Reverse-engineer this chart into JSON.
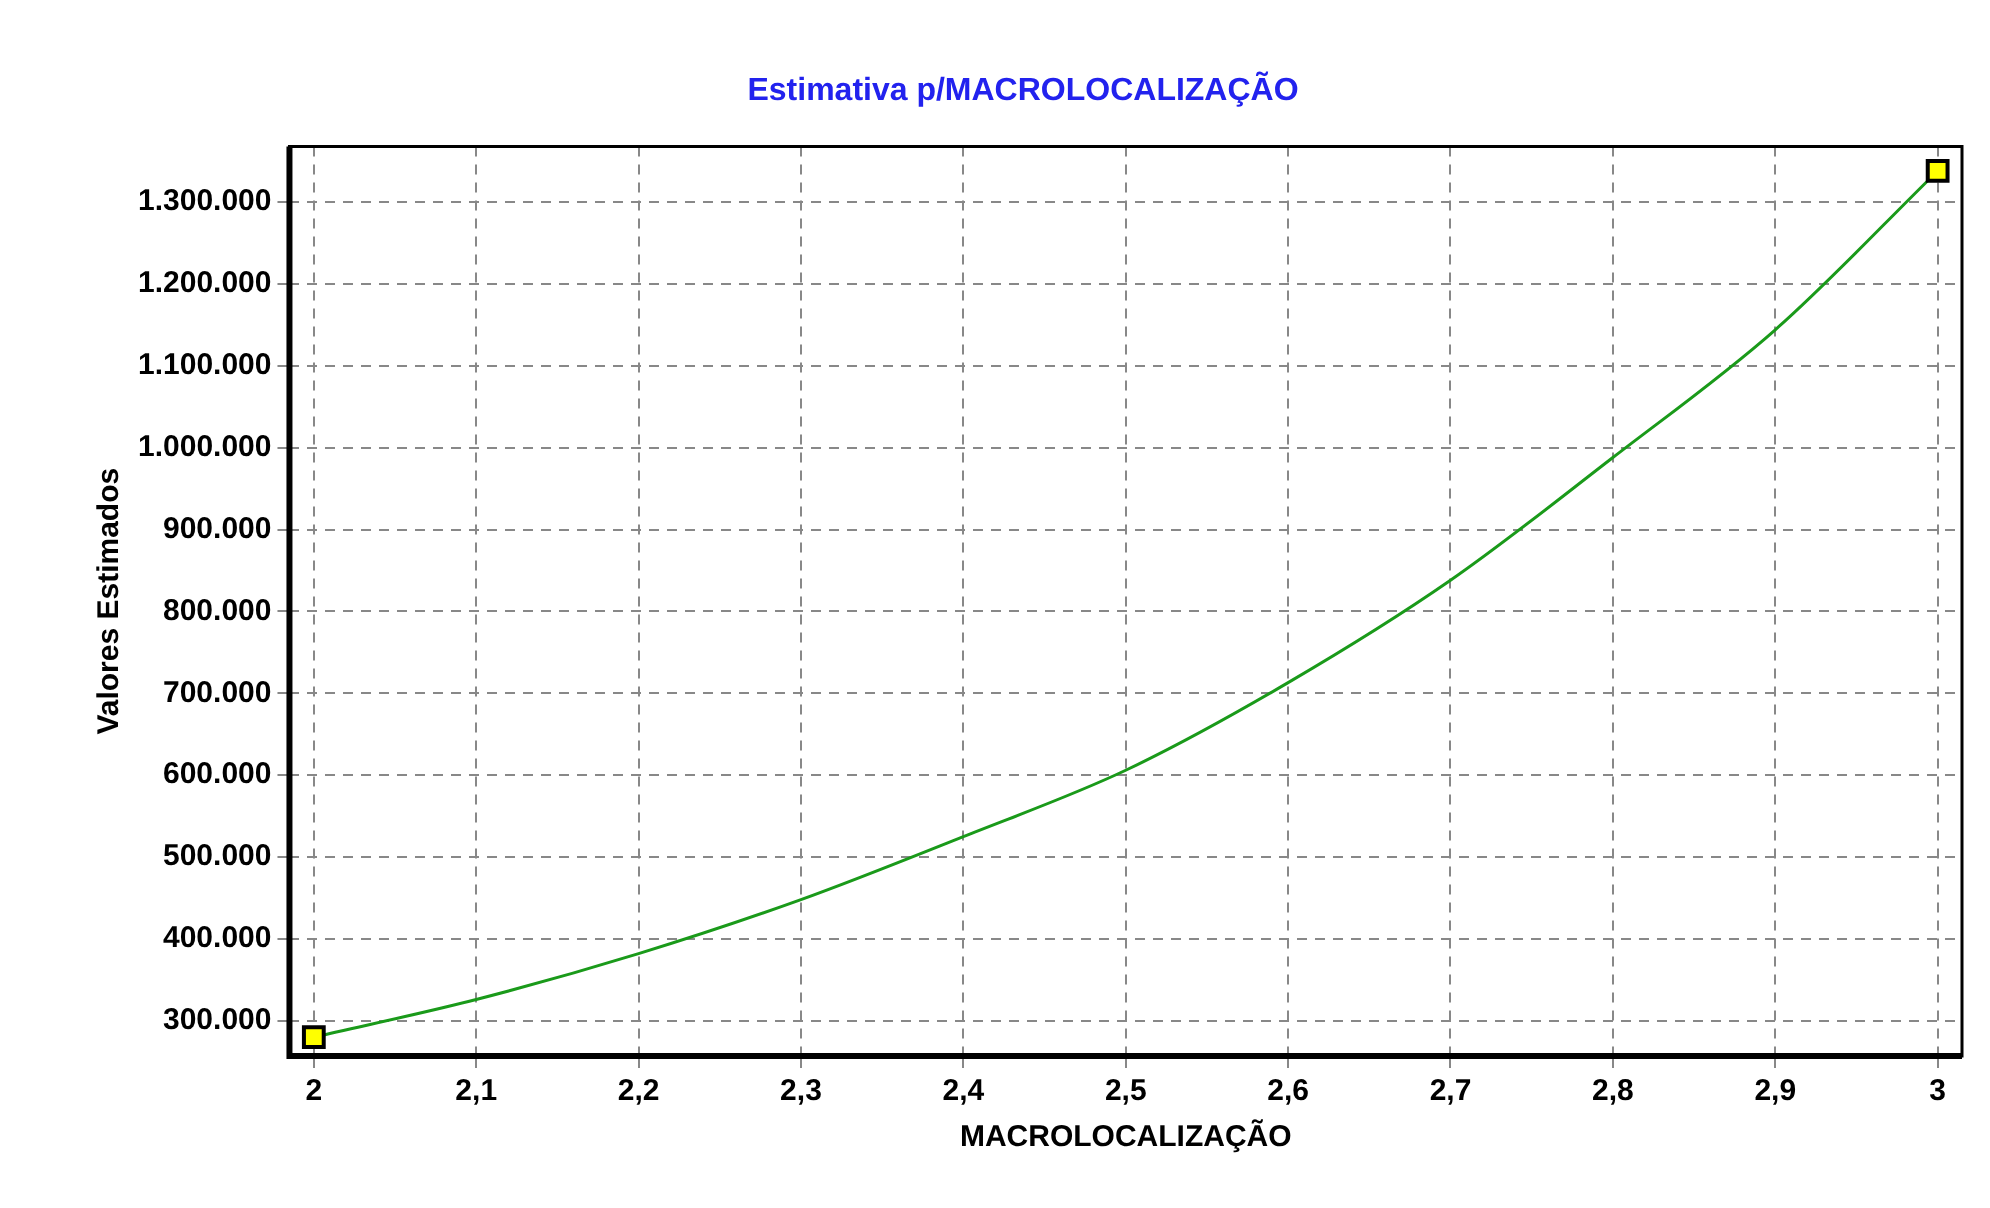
{
  "chart_data": {
    "type": "line",
    "title": "Estimativa p/MACROLOCALIZAÇÃO",
    "xlabel": "MACROLOCALIZAÇÃO",
    "ylabel": "Valores Estimados",
    "xlim": [
      1.985,
      3.015
    ],
    "ylim": [
      257000,
      1368000
    ],
    "xticks": [
      2,
      {
        "value": 2.1,
        "label": "2,1"
      },
      {
        "value": 2.2,
        "label": "2,2"
      },
      {
        "value": 2.3,
        "label": "2,3"
      },
      {
        "value": 2.4,
        "label": "2,4"
      },
      {
        "value": 2.5,
        "label": "2,5"
      },
      {
        "value": 2.6,
        "label": "2,6"
      },
      {
        "value": 2.7,
        "label": "2,7"
      },
      {
        "value": 2.8,
        "label": "2,8"
      },
      {
        "value": 2.9,
        "label": "2,9"
      },
      3
    ],
    "yticks": [
      {
        "value": 300000,
        "label": "300.000"
      },
      {
        "value": 400000,
        "label": "400.000"
      },
      {
        "value": 500000,
        "label": "500.000"
      },
      {
        "value": 600000,
        "label": "600.000"
      },
      {
        "value": 700000,
        "label": "700.000"
      },
      {
        "value": 800000,
        "label": "800.000"
      },
      {
        "value": 900000,
        "label": "900.000"
      },
      {
        "value": 1000000,
        "label": "1.000.000"
      },
      {
        "value": 1100000,
        "label": "1.100.000"
      },
      {
        "value": 1200000,
        "label": "1.200.000"
      },
      {
        "value": 1300000,
        "label": "1.300.000"
      }
    ],
    "grid": true,
    "legend": false,
    "series": [
      {
        "color": "#1a9a1a",
        "marker": "none",
        "line_style": "solid",
        "x": [
          2,
          2.1,
          2.2,
          2.3,
          2.4,
          2.5,
          2.6,
          2.7,
          2.8,
          2.9,
          3
        ],
        "values": [
          280000,
          326000,
          382000,
          448000,
          525000,
          606000,
          713000,
          838000,
          988000,
          1144000,
          1338000
        ]
      },
      {
        "type": "scatter",
        "color": "#ffff00",
        "marker": "square",
        "x": [
          2,
          3
        ],
        "values": [
          280000,
          1338000
        ]
      }
    ]
  }
}
